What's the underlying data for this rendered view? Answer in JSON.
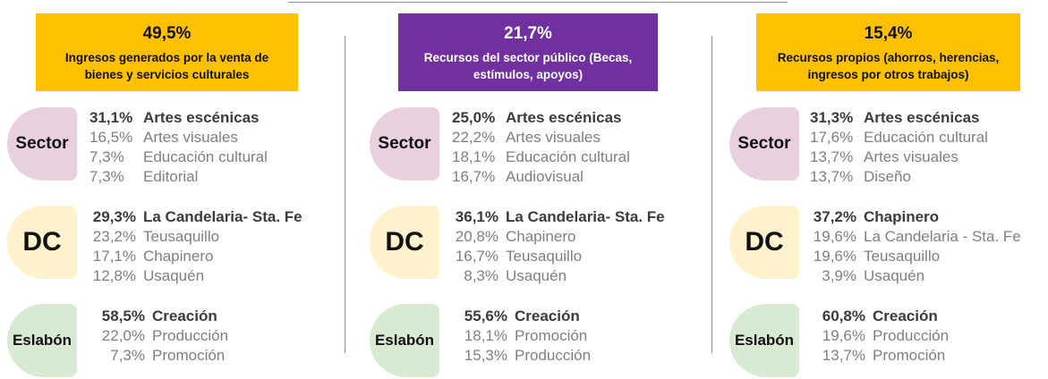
{
  "columns": [
    {
      "percent": "49,5%",
      "title": "Ingresos generados por la venta de bienes y servicios culturales",
      "groups": [
        {
          "label": "Sector",
          "items": [
            {
              "pct": "31,1%",
              "name": "Artes escénicas"
            },
            {
              "pct": "16,5%",
              "name": "Artes visuales"
            },
            {
              "pct": "7,3%",
              "name": "Educación cultural"
            },
            {
              "pct": "7,3%",
              "name": "Editorial"
            }
          ]
        },
        {
          "label": "DC",
          "items": [
            {
              "pct": "29,3%",
              "name": "La Candelaria- Sta. Fe"
            },
            {
              "pct": "23,2%",
              "name": "Teusaquillo"
            },
            {
              "pct": "17,1%",
              "name": "Chapinero"
            },
            {
              "pct": "12,8%",
              "name": "Usaquén"
            }
          ]
        },
        {
          "label": "Eslabón",
          "items": [
            {
              "pct": "58,5%",
              "name": "Creación"
            },
            {
              "pct": "22,0%",
              "name": "Producción"
            },
            {
              "pct": "7,3%",
              "name": "Promoción"
            }
          ]
        }
      ]
    },
    {
      "percent": "21,7%",
      "title": "Recursos del sector público (Becas, estímulos, apoyos)",
      "groups": [
        {
          "label": "Sector",
          "items": [
            {
              "pct": "25,0%",
              "name": "Artes escénicas"
            },
            {
              "pct": "22,2%",
              "name": "Artes visuales"
            },
            {
              "pct": "18,1%",
              "name": "Educación cultural"
            },
            {
              "pct": "16,7%",
              "name": "Audiovisual"
            }
          ]
        },
        {
          "label": "DC",
          "items": [
            {
              "pct": "36,1%",
              "name": "La Candelaria- Sta. Fe"
            },
            {
              "pct": "20,8%",
              "name": "Chapinero"
            },
            {
              "pct": "16,7%",
              "name": "Teusaquillo"
            },
            {
              "pct": "8,3%",
              "name": "Usaquén"
            }
          ]
        },
        {
          "label": "Eslabón",
          "items": [
            {
              "pct": "55,6%",
              "name": "Creación"
            },
            {
              "pct": "18,1%",
              "name": "Promoción"
            },
            {
              "pct": "15,3%",
              "name": "Producción"
            }
          ]
        }
      ]
    },
    {
      "percent": "15,4%",
      "title": "Recursos propios (ahorros, herencias, ingresos por otros trabajos)",
      "groups": [
        {
          "label": "Sector",
          "items": [
            {
              "pct": "31,3%",
              "name": "Artes escénicas"
            },
            {
              "pct": "17,6%",
              "name": "Educación cultural"
            },
            {
              "pct": "13,7%",
              "name": "Artes visuales"
            },
            {
              "pct": "13,7%",
              "name": "Diseño"
            }
          ]
        },
        {
          "label": "DC",
          "items": [
            {
              "pct": "37,2%",
              "name": "Chapinero"
            },
            {
              "pct": "19,6%",
              "name": "La Candelaria - Sta. Fe"
            },
            {
              "pct": "19,6%",
              "name": "Teusaquillo"
            },
            {
              "pct": "3,9%",
              "name": "Usaquén"
            }
          ]
        },
        {
          "label": "Eslabón",
          "items": [
            {
              "pct": "60,8%",
              "name": "Creación"
            },
            {
              "pct": "19,6%",
              "name": "Producción"
            },
            {
              "pct": "13,7%",
              "name": "Promoción"
            }
          ]
        }
      ]
    }
  ]
}
